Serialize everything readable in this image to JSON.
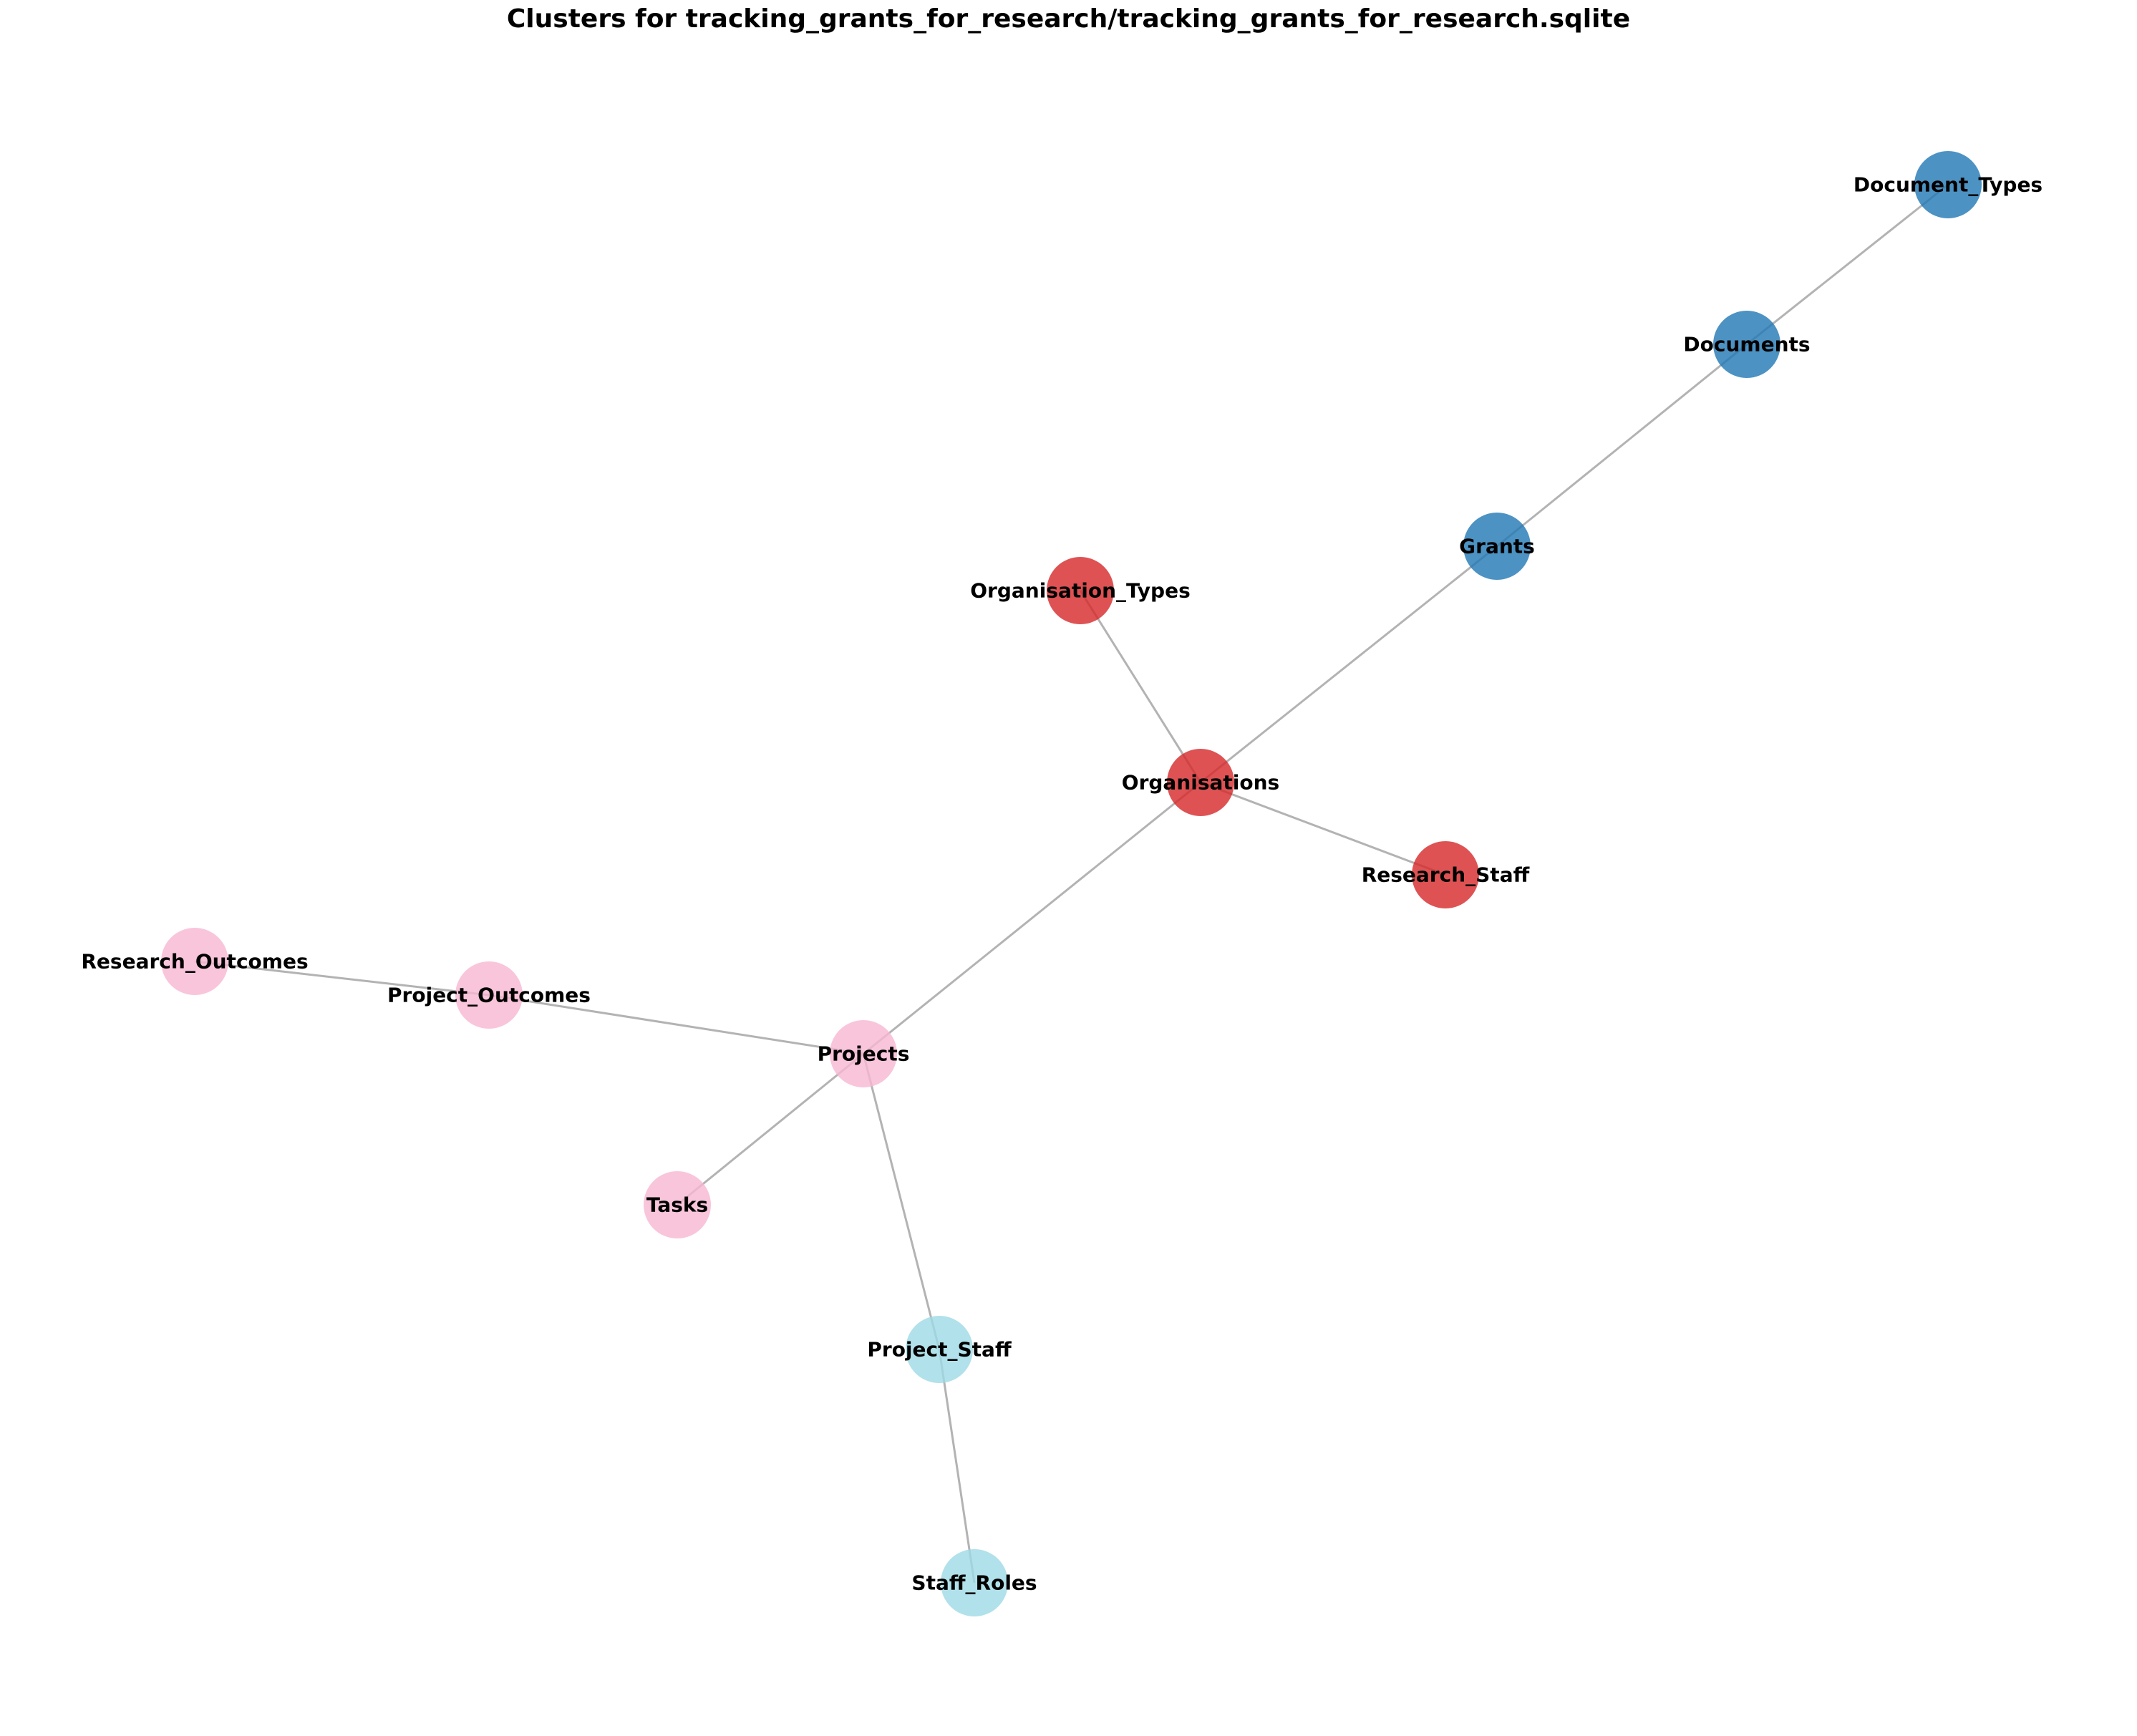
{
  "title": "Clusters for tracking_grants_for_research/tracking_grants_for_research.sqlite",
  "cluster_colors": {
    "blue": "#1f77b4",
    "red": "#d62728",
    "pink": "#f7b6d2",
    "cyan": "#9edae5"
  },
  "edge_color": "#b3b3b3",
  "nodes": [
    {
      "id": "Document_Types",
      "label": "Document_Types",
      "cluster": "blue"
    },
    {
      "id": "Documents",
      "label": "Documents",
      "cluster": "blue"
    },
    {
      "id": "Grants",
      "label": "Grants",
      "cluster": "blue"
    },
    {
      "id": "Organisation_Types",
      "label": "Organisation_Types",
      "cluster": "red"
    },
    {
      "id": "Organisations",
      "label": "Organisations",
      "cluster": "red"
    },
    {
      "id": "Research_Staff",
      "label": "Research_Staff",
      "cluster": "red"
    },
    {
      "id": "Research_Outcomes",
      "label": "Research_Outcomes",
      "cluster": "pink"
    },
    {
      "id": "Project_Outcomes",
      "label": "Project_Outcomes",
      "cluster": "pink"
    },
    {
      "id": "Projects",
      "label": "Projects",
      "cluster": "pink"
    },
    {
      "id": "Tasks",
      "label": "Tasks",
      "cluster": "pink"
    },
    {
      "id": "Project_Staff",
      "label": "Project_Staff",
      "cluster": "cyan"
    },
    {
      "id": "Staff_Roles",
      "label": "Staff_Roles",
      "cluster": "cyan"
    }
  ],
  "edges": [
    [
      "Document_Types",
      "Documents"
    ],
    [
      "Documents",
      "Grants"
    ],
    [
      "Grants",
      "Organisations"
    ],
    [
      "Organisation_Types",
      "Organisations"
    ],
    [
      "Organisations",
      "Research_Staff"
    ],
    [
      "Organisations",
      "Projects"
    ],
    [
      "Research_Outcomes",
      "Project_Outcomes"
    ],
    [
      "Project_Outcomes",
      "Projects"
    ],
    [
      "Projects",
      "Tasks"
    ],
    [
      "Projects",
      "Project_Staff"
    ],
    [
      "Project_Staff",
      "Staff_Roles"
    ]
  ]
}
